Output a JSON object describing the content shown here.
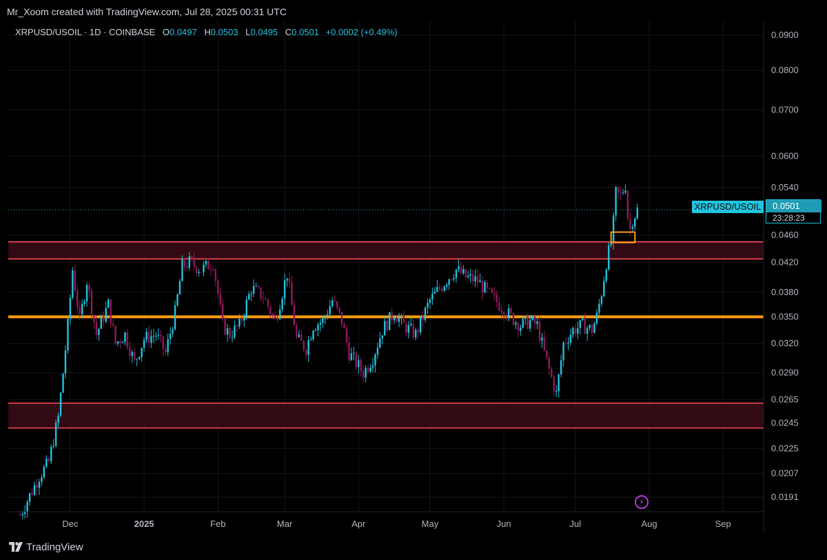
{
  "header": {
    "credit": "Mr_Xoom created with TradingView.com, Jul 28, 2025 00:31 UTC"
  },
  "legend": {
    "symbol": "XRPUSD/USOIL · 1D · COINBASE",
    "o_label": "O",
    "o": "0.0497",
    "h_label": "H",
    "h": "0.0503",
    "l_label": "L",
    "l": "0.0495",
    "c_label": "C",
    "c": "0.0501",
    "change": "+0.0002 (+0.49%)"
  },
  "last_price": {
    "series_label": "XRPUSD/USOIL",
    "value": "0.0501",
    "countdown": "23:28:23"
  },
  "footer": {
    "brand": "TradingView"
  },
  "colors": {
    "up": "#22c3dd",
    "down": "#8e1a5a",
    "zone_fill": "#3a0c17",
    "zone_line": "#ff4d5a",
    "level": "#ff9f10",
    "box": "#ff9f10",
    "last": "#22c3dd",
    "grid": "#14161c"
  },
  "chart_data": {
    "type": "candlestick",
    "symbol": "XRPUSD/USOIL",
    "timeframe": "1D",
    "exchange": "COINBASE",
    "y_scale": "log",
    "y_ticks": [
      0.09,
      0.08,
      0.07,
      0.06,
      0.054,
      0.046,
      0.042,
      0.038,
      0.035,
      0.032,
      0.029,
      0.0265,
      0.0245,
      0.0225,
      0.0207,
      0.0191
    ],
    "y_tick_labels": [
      "0.0900",
      "0.0800",
      "0.0700",
      "0.0600",
      "0.0540",
      "0.0460",
      "0.0420",
      "0.0380",
      "0.0350",
      "0.0320",
      "0.0290",
      "0.0265",
      "0.0245",
      "0.0225",
      "0.0207",
      "0.0191"
    ],
    "ylim": [
      0.0182,
      0.0945
    ],
    "x_start": "2024-11-05",
    "x_end": "2025-09-18",
    "x_ticks": [
      {
        "date": "2024-12-01",
        "label": "Dec",
        "bold": false
      },
      {
        "date": "2025-01-01",
        "label": "2025",
        "bold": true
      },
      {
        "date": "2025-02-01",
        "label": "Feb",
        "bold": false
      },
      {
        "date": "2025-03-01",
        "label": "Mar",
        "bold": false
      },
      {
        "date": "2025-04-01",
        "label": "Apr",
        "bold": false
      },
      {
        "date": "2025-05-01",
        "label": "May",
        "bold": false
      },
      {
        "date": "2025-06-01",
        "label": "Jun",
        "bold": false
      },
      {
        "date": "2025-07-01",
        "label": "Jul",
        "bold": false
      },
      {
        "date": "2025-08-01",
        "label": "Aug",
        "bold": false
      },
      {
        "date": "2025-09-01",
        "label": "Sep",
        "bold": false
      }
    ],
    "zones": [
      {
        "top": 0.045,
        "bottom": 0.0425
      },
      {
        "top": 0.0262,
        "bottom": 0.0241
      }
    ],
    "levels": [
      0.035
    ],
    "highlight_box": {
      "x1": "2025-07-16",
      "x2": "2025-07-26",
      "top": 0.0465,
      "bottom": 0.0449
    },
    "last_value": 0.0501,
    "closes": [
      {
        "date": "2024-11-10",
        "close": 0.018
      },
      {
        "date": "2024-11-18",
        "close": 0.0205
      },
      {
        "date": "2024-11-22",
        "close": 0.0215
      },
      {
        "date": "2024-11-26",
        "close": 0.025
      },
      {
        "date": "2024-11-28",
        "close": 0.029
      },
      {
        "date": "2024-11-30",
        "close": 0.034
      },
      {
        "date": "2024-12-02",
        "close": 0.041
      },
      {
        "date": "2024-12-05",
        "close": 0.0345
      },
      {
        "date": "2024-12-08",
        "close": 0.0395
      },
      {
        "date": "2024-12-12",
        "close": 0.033
      },
      {
        "date": "2024-12-17",
        "close": 0.0365
      },
      {
        "date": "2024-12-20",
        "close": 0.032
      },
      {
        "date": "2024-12-24",
        "close": 0.033
      },
      {
        "date": "2024-12-28",
        "close": 0.03
      },
      {
        "date": "2025-01-01",
        "close": 0.0325
      },
      {
        "date": "2025-01-06",
        "close": 0.033
      },
      {
        "date": "2025-01-10",
        "close": 0.031
      },
      {
        "date": "2025-01-14",
        "close": 0.0355
      },
      {
        "date": "2025-01-17",
        "close": 0.0415
      },
      {
        "date": "2025-01-20",
        "close": 0.042
      },
      {
        "date": "2025-01-25",
        "close": 0.041
      },
      {
        "date": "2025-01-30",
        "close": 0.042
      },
      {
        "date": "2025-02-03",
        "close": 0.034
      },
      {
        "date": "2025-02-06",
        "close": 0.033
      },
      {
        "date": "2025-02-10",
        "close": 0.034
      },
      {
        "date": "2025-02-15",
        "close": 0.0385
      },
      {
        "date": "2025-02-20",
        "close": 0.0375
      },
      {
        "date": "2025-02-25",
        "close": 0.0345
      },
      {
        "date": "2025-03-02",
        "close": 0.0405
      },
      {
        "date": "2025-03-06",
        "close": 0.0325
      },
      {
        "date": "2025-03-10",
        "close": 0.0315
      },
      {
        "date": "2025-03-13",
        "close": 0.034
      },
      {
        "date": "2025-03-17",
        "close": 0.0345
      },
      {
        "date": "2025-03-21",
        "close": 0.037
      },
      {
        "date": "2025-03-25",
        "close": 0.0345
      },
      {
        "date": "2025-03-28",
        "close": 0.031
      },
      {
        "date": "2025-04-03",
        "close": 0.029
      },
      {
        "date": "2025-04-07",
        "close": 0.0305
      },
      {
        "date": "2025-04-11",
        "close": 0.0335
      },
      {
        "date": "2025-04-16",
        "close": 0.0355
      },
      {
        "date": "2025-04-20",
        "close": 0.034
      },
      {
        "date": "2025-04-25",
        "close": 0.033
      },
      {
        "date": "2025-05-01",
        "close": 0.037
      },
      {
        "date": "2025-05-05",
        "close": 0.0385
      },
      {
        "date": "2025-05-09",
        "close": 0.04
      },
      {
        "date": "2025-05-12",
        "close": 0.041
      },
      {
        "date": "2025-05-16",
        "close": 0.04
      },
      {
        "date": "2025-05-21",
        "close": 0.0395
      },
      {
        "date": "2025-05-25",
        "close": 0.038
      },
      {
        "date": "2025-05-30",
        "close": 0.0365
      },
      {
        "date": "2025-06-04",
        "close": 0.035
      },
      {
        "date": "2025-06-08",
        "close": 0.034
      },
      {
        "date": "2025-06-12",
        "close": 0.0345
      },
      {
        "date": "2025-06-15",
        "close": 0.034
      },
      {
        "date": "2025-06-18",
        "close": 0.031
      },
      {
        "date": "2025-06-21",
        "close": 0.0285
      },
      {
        "date": "2025-06-23",
        "close": 0.027
      },
      {
        "date": "2025-06-26",
        "close": 0.032
      },
      {
        "date": "2025-06-30",
        "close": 0.0335
      },
      {
        "date": "2025-07-04",
        "close": 0.034
      },
      {
        "date": "2025-07-08",
        "close": 0.0335
      },
      {
        "date": "2025-07-10",
        "close": 0.035
      },
      {
        "date": "2025-07-12",
        "close": 0.038
      },
      {
        "date": "2025-07-14",
        "close": 0.042
      },
      {
        "date": "2025-07-16",
        "close": 0.045
      },
      {
        "date": "2025-07-17",
        "close": 0.048
      },
      {
        "date": "2025-07-18",
        "close": 0.053
      },
      {
        "date": "2025-07-20",
        "close": 0.0525
      },
      {
        "date": "2025-07-22",
        "close": 0.0545
      },
      {
        "date": "2025-07-23",
        "close": 0.049
      },
      {
        "date": "2025-07-24",
        "close": 0.047
      },
      {
        "date": "2025-07-25",
        "close": 0.0485
      },
      {
        "date": "2025-07-27",
        "close": 0.0501
      }
    ]
  }
}
